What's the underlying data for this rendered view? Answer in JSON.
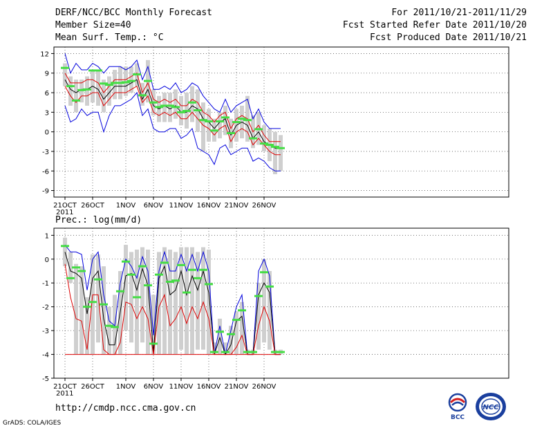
{
  "header": {
    "title": "DERF/NCC/BCC Monthly Forecast",
    "member": "Member Size=40",
    "variable": "Mean Surf. Temp.: °C",
    "for": "For 2011/10/21-2011/11/29",
    "started": "Fcst Started Refer Date 2011/10/20",
    "produced": "Fcst Produced Date 2011/10/21"
  },
  "footer": {
    "url": "http://cmdp.ncc.cma.gov.cn",
    "grads": "GrADS: COLA/IGES",
    "logo_bcc": "BCC",
    "logo_ncc": "NCC"
  },
  "colors": {
    "blue": "#0000dd",
    "red": "#dd0000",
    "green": "#44dd44",
    "box": "#cfcfcf"
  },
  "chart_data": [
    {
      "type": "line",
      "title": "Mean Surf. Temp.: °C",
      "x_labels": [
        {
          "i": 0,
          "text": "21OCT"
        },
        {
          "i": 5,
          "text": "26OCT"
        },
        {
          "i": 11,
          "text": "1NOV"
        },
        {
          "i": 16,
          "text": "6NOV"
        },
        {
          "i": 21,
          "text": "11NOV"
        },
        {
          "i": 26,
          "text": "16NOV"
        },
        {
          "i": 31,
          "text": "21NOV"
        },
        {
          "i": 36,
          "text": "26NOV"
        }
      ],
      "x_year": "2011",
      "ylim": [
        -10,
        13
      ],
      "yticks": [
        12,
        9,
        6,
        3,
        0,
        -3,
        -6,
        -9
      ],
      "ytick_labels": [
        "12",
        "9",
        "6",
        "3",
        "0",
        "-3",
        "-6",
        "-9"
      ],
      "series": [
        {
          "name": "max",
          "color": "#0000dd",
          "values": [
            12.0,
            9.0,
            10.5,
            9.5,
            9.5,
            10.5,
            10.0,
            9.0,
            10.0,
            10.0,
            10.0,
            9.5,
            10.0,
            11.0,
            8.0,
            10.0,
            6.5,
            6.5,
            7.0,
            6.5,
            7.5,
            6.0,
            6.5,
            7.5,
            7.0,
            5.5,
            4.5,
            3.5,
            3.0,
            5.0,
            3.0,
            4.0,
            4.5,
            5.0,
            2.0,
            3.5,
            1.5,
            0.5,
            0.5,
            0.5
          ]
        },
        {
          "name": "upper",
          "color": "#dd0000",
          "values": [
            9.0,
            7.5,
            7.5,
            7.5,
            8.0,
            8.0,
            7.5,
            6.0,
            7.0,
            8.0,
            8.0,
            8.0,
            8.5,
            9.0,
            6.0,
            7.5,
            5.0,
            4.5,
            5.0,
            4.5,
            5.0,
            4.0,
            4.0,
            5.0,
            4.5,
            3.0,
            2.5,
            1.5,
            2.5,
            3.0,
            0.5,
            2.0,
            2.5,
            2.0,
            0.0,
            1.0,
            -0.5,
            -1.5,
            -1.5,
            -1.5
          ]
        },
        {
          "name": "mean",
          "color": "#000000",
          "values": [
            8.0,
            6.5,
            6.0,
            6.5,
            6.5,
            7.0,
            6.5,
            5.0,
            6.0,
            7.0,
            7.0,
            7.0,
            7.5,
            8.0,
            5.0,
            6.5,
            4.0,
            3.5,
            4.0,
            3.5,
            4.0,
            3.0,
            3.0,
            4.0,
            3.5,
            2.0,
            1.5,
            0.5,
            1.5,
            2.0,
            -0.5,
            1.0,
            1.5,
            1.0,
            -1.0,
            0.0,
            -1.5,
            -2.0,
            -2.5,
            -2.5
          ]
        },
        {
          "name": "lower",
          "color": "#dd0000",
          "values": [
            7.0,
            5.5,
            4.5,
            5.5,
            5.5,
            6.0,
            6.0,
            4.0,
            5.0,
            6.0,
            6.0,
            6.0,
            6.5,
            7.0,
            4.5,
            5.5,
            3.0,
            2.5,
            3.0,
            2.5,
            3.0,
            2.0,
            2.0,
            3.0,
            2.0,
            1.0,
            0.5,
            -0.5,
            0.5,
            1.0,
            -1.5,
            0.0,
            0.5,
            0.0,
            -2.0,
            -1.0,
            -2.0,
            -3.0,
            -3.5,
            -3.5
          ]
        },
        {
          "name": "min",
          "color": "#0000dd",
          "values": [
            4.0,
            1.5,
            2.0,
            3.5,
            2.5,
            3.0,
            3.0,
            0.0,
            2.5,
            4.0,
            4.0,
            4.5,
            5.0,
            6.0,
            2.5,
            3.5,
            0.5,
            0.0,
            0.0,
            0.5,
            0.5,
            -1.0,
            -0.5,
            0.5,
            -2.5,
            -3.0,
            -3.5,
            -5.0,
            -2.5,
            -2.0,
            -3.5,
            -3.0,
            -2.5,
            -2.5,
            -4.5,
            -4.0,
            -4.5,
            -5.5,
            -6.0,
            -6.0
          ]
        }
      ],
      "markers": {
        "name": "observed",
        "color": "#44dd44",
        "values": [
          9.8,
          7.0,
          4.8,
          6.4,
          6.5,
          9.4,
          9.4,
          7.4,
          7.2,
          7.5,
          7.5,
          7.6,
          7.8,
          8.8,
          5.6,
          7.8,
          4.5,
          3.8,
          4.0,
          4.0,
          3.8,
          3.0,
          3.2,
          4.5,
          3.3,
          1.8,
          1.6,
          0.2,
          1.6,
          2.2,
          -0.2,
          1.5,
          2.0,
          1.8,
          -1.0,
          0.4,
          -1.8,
          -2.0,
          -2.3,
          -2.5
        ]
      },
      "boxes": {
        "name": "spread",
        "color": "#cfcfcf",
        "low": [
          7.0,
          4.0,
          3.0,
          4.5,
          4.0,
          4.5,
          4.0,
          3.0,
          4.0,
          5.0,
          5.0,
          5.5,
          6.0,
          7.0,
          4.0,
          4.5,
          2.5,
          1.5,
          1.5,
          1.5,
          2.0,
          1.0,
          0.5,
          1.5,
          0.0,
          -3.0,
          -1.5,
          -1.5,
          -1.0,
          -0.5,
          -2.5,
          -1.5,
          -1.0,
          -1.5,
          -2.5,
          -2.0,
          -3.0,
          -4.5,
          -6.5,
          -6.0
        ],
        "high": [
          10.5,
          8.5,
          8.0,
          8.0,
          8.5,
          9.5,
          9.5,
          8.0,
          8.5,
          9.5,
          10.0,
          10.0,
          10.0,
          10.5,
          7.5,
          11.0,
          6.5,
          5.5,
          6.0,
          6.0,
          6.5,
          5.5,
          6.0,
          7.0,
          6.5,
          4.5,
          3.5,
          2.0,
          3.0,
          4.0,
          2.0,
          3.5,
          4.0,
          5.5,
          2.5,
          3.0,
          1.0,
          0.5,
          0.0,
          -0.5
        ]
      }
    },
    {
      "type": "line",
      "title": "Prec.: log(mm/d)",
      "x_labels": [
        {
          "i": 0,
          "text": "21OCT"
        },
        {
          "i": 5,
          "text": "26OCT"
        },
        {
          "i": 11,
          "text": "1NOV"
        },
        {
          "i": 16,
          "text": "6NOV"
        },
        {
          "i": 21,
          "text": "11NOV"
        },
        {
          "i": 26,
          "text": "16NOV"
        },
        {
          "i": 31,
          "text": "21NOV"
        },
        {
          "i": 36,
          "text": "26NOV"
        }
      ],
      "x_year": "2011",
      "ylim": [
        -5,
        1.3
      ],
      "yticks": [
        1,
        0,
        -1,
        -2,
        -3,
        -4,
        -5
      ],
      "ytick_labels": [
        "1",
        "0",
        "-1",
        "-2",
        "-3",
        "-4",
        "-5"
      ],
      "series": [
        {
          "name": "max",
          "color": "#0000dd",
          "values": [
            0.6,
            0.3,
            0.3,
            0.2,
            -1.3,
            0.0,
            0.3,
            -1.5,
            -2.6,
            -2.8,
            -1.0,
            0.0,
            -0.3,
            -0.8,
            0.1,
            -0.5,
            -3.2,
            -0.5,
            0.3,
            -0.5,
            -0.5,
            0.2,
            -0.5,
            0.2,
            -0.5,
            0.3,
            -0.5,
            -4.0,
            -2.8,
            -4.0,
            -3.0,
            -2.0,
            -1.5,
            -4.0,
            -4.0,
            -0.5,
            0.0,
            -0.7,
            -4.0,
            -4.0
          ]
        },
        {
          "name": "mean",
          "color": "#000000",
          "values": [
            0.3,
            -0.5,
            -0.6,
            -0.8,
            -2.3,
            -0.8,
            -0.5,
            -2.5,
            -3.6,
            -3.6,
            -2.2,
            -0.7,
            -0.6,
            -1.3,
            -0.4,
            -1.1,
            -3.9,
            -0.8,
            -0.3,
            -1.5,
            -1.3,
            -0.5,
            -1.5,
            -0.7,
            -1.3,
            -0.5,
            -1.4,
            -4.0,
            -3.3,
            -4.0,
            -3.6,
            -2.6,
            -2.4,
            -4.0,
            -4.0,
            -1.5,
            -1.0,
            -1.4,
            -4.0,
            -4.0
          ]
        },
        {
          "name": "lower",
          "color": "#dd0000",
          "values": [
            -0.2,
            -1.6,
            -2.5,
            -2.6,
            -3.8,
            -1.5,
            -1.5,
            -3.8,
            -4.0,
            -4.0,
            -3.5,
            -1.8,
            -1.9,
            -2.5,
            -2.0,
            -2.5,
            -4.0,
            -2.0,
            -1.5,
            -2.8,
            -2.5,
            -2.0,
            -2.7,
            -2.0,
            -2.5,
            -1.8,
            -2.5,
            -4.0,
            -4.0,
            -4.0,
            -4.0,
            -3.7,
            -3.2,
            -4.0,
            -4.0,
            -2.8,
            -2.0,
            -2.6,
            -4.0,
            -4.0
          ]
        },
        {
          "name": "min",
          "color": "#dd0000",
          "values": [
            -4.0,
            -4.0,
            -4.0,
            -4.0,
            -4.0,
            -4.0,
            -4.0,
            -4.0,
            -4.0,
            -4.0,
            -4.0,
            -4.0,
            -4.0,
            -4.0,
            -4.0,
            -4.0,
            -4.0,
            -4.0,
            -4.0,
            -4.0,
            -4.0,
            -4.0,
            -4.0,
            -4.0,
            -4.0,
            -4.0,
            -4.0,
            -4.0,
            -4.0,
            -4.0,
            -4.0,
            -4.0,
            -4.0,
            -4.0,
            -4.0,
            -4.0,
            -4.0,
            -4.0,
            -4.0,
            -4.0
          ]
        }
      ],
      "markers": {
        "name": "observed",
        "color": "#44dd44",
        "values": [
          0.55,
          -0.8,
          -0.35,
          -0.5,
          -2.0,
          -1.8,
          -0.85,
          -1.9,
          -2.8,
          -2.85,
          -1.35,
          -0.1,
          -0.65,
          -1.6,
          -0.3,
          -1.1,
          -3.55,
          -0.65,
          -0.15,
          -0.95,
          -0.9,
          -0.25,
          -1.4,
          -0.45,
          -0.8,
          -0.45,
          -1.05,
          -3.9,
          -3.05,
          -3.9,
          -3.15,
          -2.55,
          -2.15,
          -3.9,
          -3.9,
          -1.55,
          -0.55,
          -1.15,
          -3.9,
          -3.9
        ]
      },
      "boxes": {
        "name": "spread",
        "color": "#cfcfcf",
        "low": [
          -0.3,
          -1.0,
          -4.0,
          -4.0,
          -4.0,
          -4.0,
          -3.5,
          -4.0,
          -4.0,
          -4.0,
          -4.0,
          -3.0,
          -3.5,
          -4.0,
          -3.5,
          -4.0,
          -4.0,
          -4.0,
          -4.0,
          -4.0,
          -4.0,
          -3.8,
          -4.0,
          -4.0,
          -3.8,
          -3.8,
          -4.0,
          -4.0,
          -4.0,
          -4.0,
          -4.0,
          -4.0,
          -4.0,
          -4.0,
          -4.0,
          -3.8,
          -3.5,
          -3.8,
          -4.0,
          -4.0
        ],
        "high": [
          0.9,
          0.3,
          -0.2,
          -0.3,
          -1.6,
          0.2,
          0.2,
          -0.3,
          -2.0,
          -1.5,
          -0.5,
          0.6,
          0.3,
          0.4,
          0.5,
          0.4,
          -1.5,
          0.3,
          0.5,
          0.4,
          0.3,
          0.5,
          0.5,
          0.5,
          0.3,
          0.5,
          0.4,
          -3.5,
          -2.5,
          -3.5,
          -2.8,
          -2.2,
          -1.8,
          -3.8,
          -3.8,
          -1.0,
          0.0,
          -0.5,
          -3.8,
          -3.8
        ]
      }
    }
  ]
}
